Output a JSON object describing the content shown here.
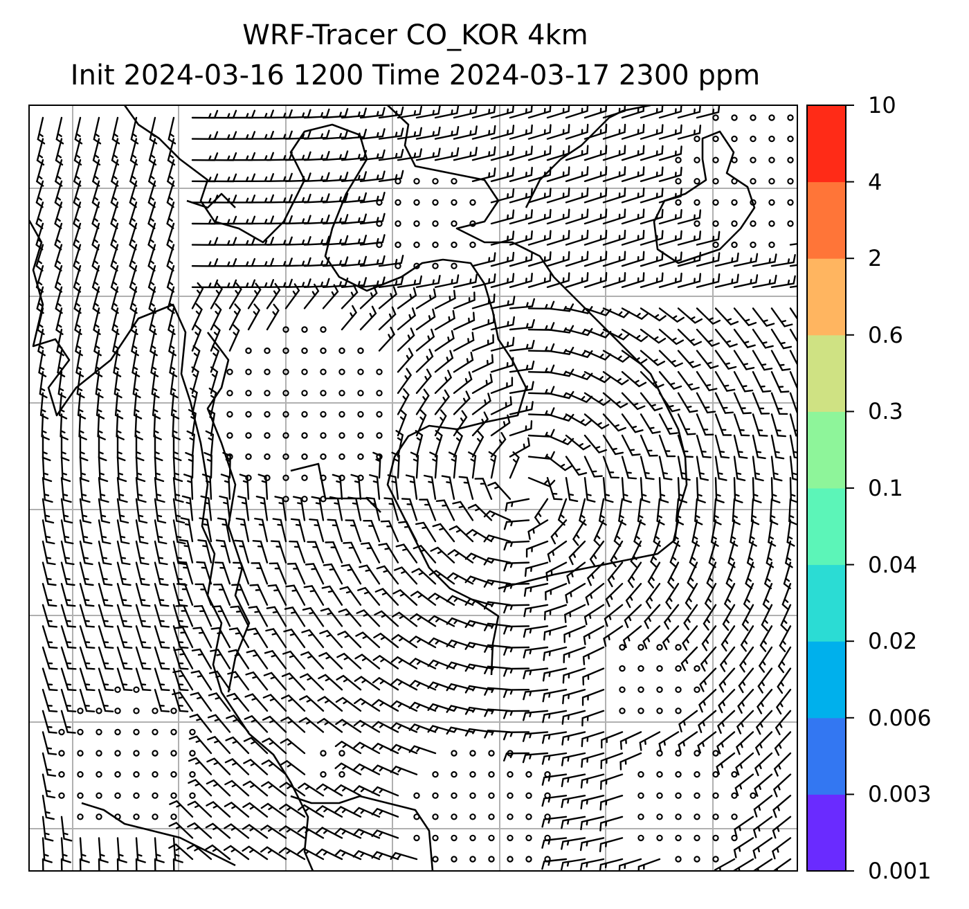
{
  "title": {
    "line1": "WRF-Tracer CO_KOR 4km",
    "line2": "Init 2024-03-16 1200 Time 2024-03-17 2300 ppm"
  },
  "colorbar": {
    "levels": [
      "0.001",
      "0.003",
      "0.006",
      "0.02",
      "0.04",
      "0.1",
      "0.3",
      "0.6",
      "2",
      "4",
      "10"
    ],
    "colors": [
      "#6a2bff",
      "#3377f2",
      "#00b0ec",
      "#2bdcd4",
      "#5cf5b8",
      "#8ef59a",
      "#cfe283",
      "#ffb560",
      "#ff7538",
      "#ff2b17"
    ]
  },
  "map": {
    "grid": true,
    "grid_color": "#b0b0b0",
    "symbol": "wind-barbs",
    "calm_symbol": "circle"
  }
}
